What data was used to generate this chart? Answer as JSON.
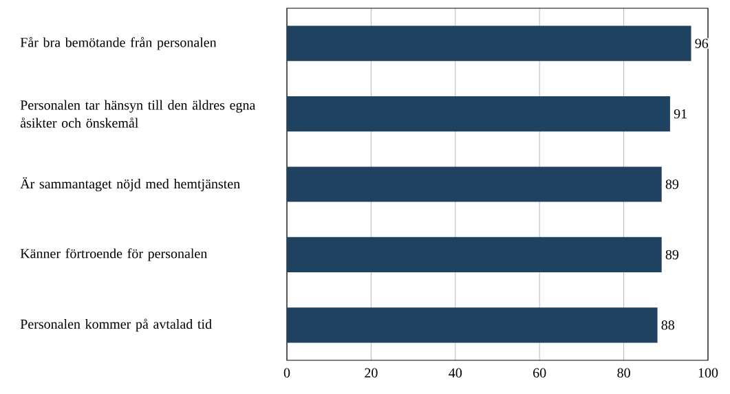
{
  "chart_data": {
    "type": "bar",
    "orientation": "horizontal",
    "categories": [
      "Får bra bemötande från personalen",
      "Personalen tar hänsyn till den äldres egna åsikter och önskemål",
      "Är sammantaget nöjd med hemtjänsten",
      "Känner förtroende för personalen",
      "Personalen kommer på avtalad tid"
    ],
    "values": [
      96,
      91,
      89,
      89,
      88
    ],
    "color": "#1f4260",
    "xlim": [
      0,
      100
    ],
    "xticks": [
      0,
      20,
      40,
      60,
      80,
      100
    ],
    "grid": "x",
    "data_labels": true
  }
}
